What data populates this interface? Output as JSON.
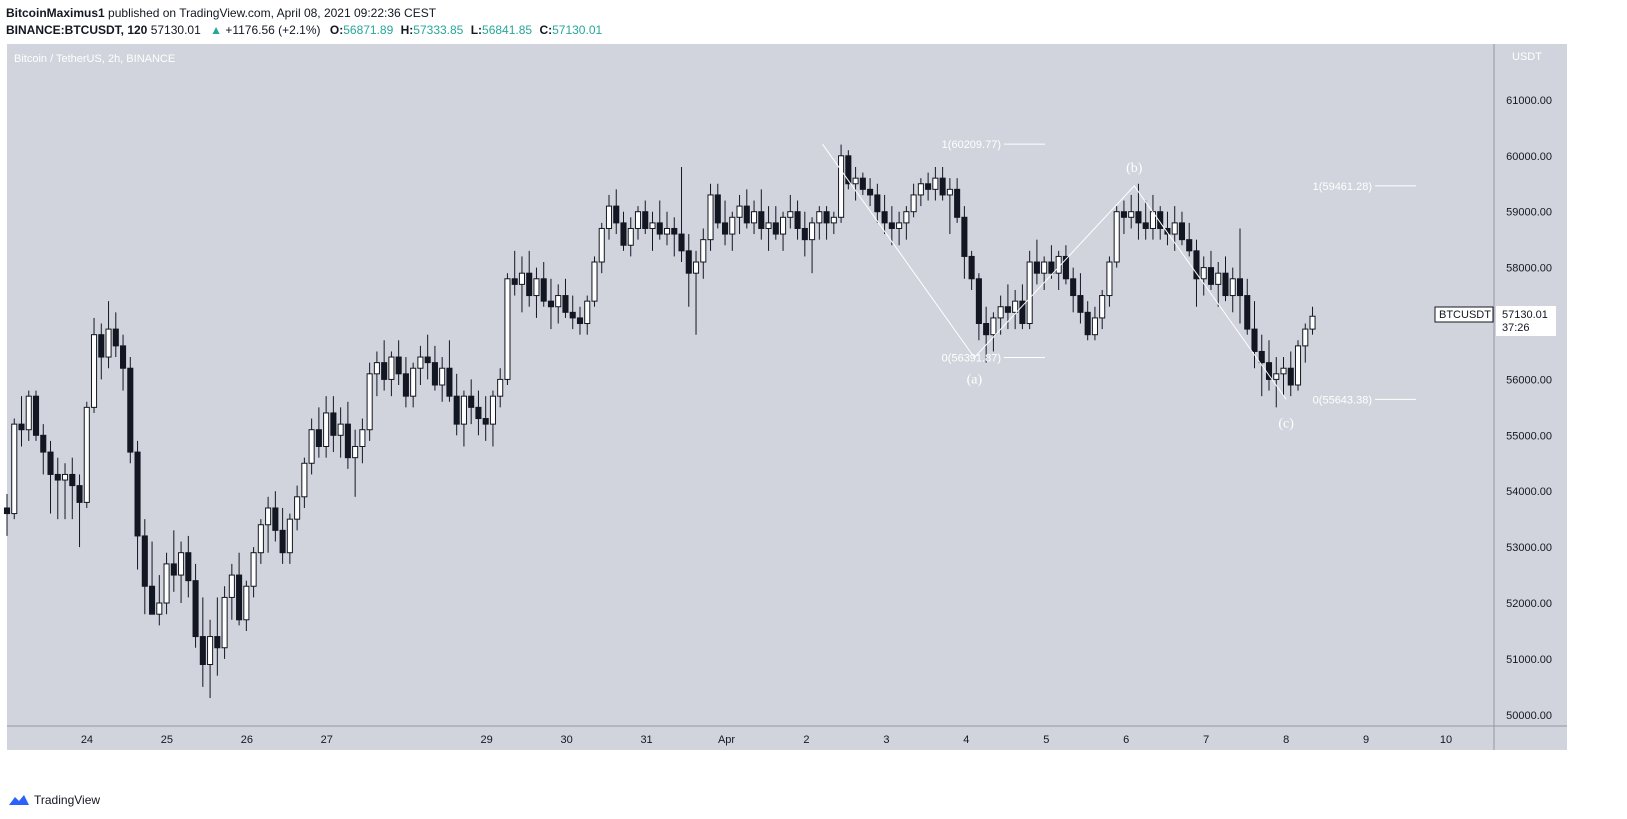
{
  "header": {
    "author": "BitcoinMaximus1",
    "published_text": "published on TradingView.com, April 08, 2021 09:22:36 CEST",
    "symbol": "BINANCE:BTCUSDT, 120",
    "price": "57130.01",
    "change_arrow": "▲",
    "change": "+1176.56 (+2.1%)",
    "open_label": "O:",
    "open": "56871.89",
    "high_label": "H:",
    "high": "57333.85",
    "low_label": "L:",
    "low": "56841.85",
    "close_label": "C:",
    "close": "57130.01"
  },
  "footer": {
    "brand": "TradingView"
  },
  "colors": {
    "plot_bg": "#d1d4dc",
    "up_body": "#ffffff",
    "down_body": "#131722",
    "wick": "#131722",
    "annotation": "#ffffff",
    "accent_up": "#26a69a"
  },
  "chart_data": {
    "type": "candlestick",
    "title": "Bitcoin / TetherUS, 2h, BINANCE",
    "unit": "USDT",
    "ylim": [
      49800,
      62000
    ],
    "y_ticks": [
      50000,
      51000,
      52000,
      53000,
      54000,
      55000,
      56000,
      57000,
      58000,
      59000,
      60000,
      61000
    ],
    "y_tick_labels": [
      "50000.00",
      "51000.00",
      "52000.00",
      "53000.00",
      "54000.00",
      "55000.00",
      "56000.00",
      "57000.00",
      "58000.00",
      "59000.00",
      "60000.00",
      "61000.00"
    ],
    "x_day_range": [
      23.0,
      33.6
    ],
    "x_ticks": [
      {
        "day": 24,
        "label": "24"
      },
      {
        "day": 25,
        "label": "25"
      },
      {
        "day": 26,
        "label": "26"
      },
      {
        "day": 27,
        "label": "27"
      },
      {
        "day": 29,
        "label": "29"
      },
      {
        "day": 30,
        "label": "30"
      },
      {
        "day": 31,
        "label": "31"
      },
      {
        "day": 32,
        "label": "Apr"
      },
      {
        "day": 33,
        "label": "2"
      },
      {
        "day": 34,
        "label": "3"
      },
      {
        "day": 35,
        "label": "4"
      },
      {
        "day": 36,
        "label": "5"
      },
      {
        "day": 37,
        "label": "6"
      },
      {
        "day": 38,
        "label": "7"
      },
      {
        "day": 39,
        "label": "8"
      },
      {
        "day": 40,
        "label": "9"
      },
      {
        "day": 41,
        "label": "10"
      }
    ],
    "last_price": {
      "symbol": "BTCUSDT",
      "price": "57130.01",
      "countdown": "37:26",
      "value": 57130.01
    },
    "candles": [
      [
        53700,
        53950,
        53200,
        53600
      ],
      [
        53600,
        55300,
        53500,
        55200
      ],
      [
        55200,
        55700,
        54800,
        55100
      ],
      [
        55100,
        55800,
        54900,
        55700
      ],
      [
        55700,
        55800,
        54900,
        55000
      ],
      [
        55000,
        55200,
        54300,
        54700
      ],
      [
        54700,
        54900,
        53600,
        54300
      ],
      [
        54300,
        54600,
        53500,
        54200
      ],
      [
        54200,
        54500,
        53500,
        54300
      ],
      [
        54300,
        54600,
        53500,
        54100
      ],
      [
        54100,
        54300,
        53000,
        53800
      ],
      [
        53800,
        55600,
        53700,
        55500
      ],
      [
        55500,
        57100,
        55400,
        56800
      ],
      [
        56800,
        57000,
        56000,
        56400
      ],
      [
        56400,
        57400,
        56200,
        56900
      ],
      [
        56900,
        57200,
        56400,
        56600
      ],
      [
        56600,
        56800,
        55800,
        56200
      ],
      [
        56200,
        56400,
        54500,
        54700
      ],
      [
        54700,
        54900,
        52600,
        53200
      ],
      [
        53200,
        53500,
        51800,
        52300
      ],
      [
        52300,
        53100,
        51900,
        51800
      ],
      [
        51800,
        52500,
        51600,
        52000
      ],
      [
        52000,
        52900,
        51800,
        52700
      ],
      [
        52700,
        53300,
        52200,
        52500
      ],
      [
        52500,
        53100,
        52000,
        52900
      ],
      [
        52900,
        53200,
        52100,
        52400
      ],
      [
        52400,
        52700,
        51200,
        51400
      ],
      [
        51400,
        52100,
        50500,
        50900
      ],
      [
        50900,
        51700,
        50300,
        51400
      ],
      [
        51400,
        52100,
        50700,
        51200
      ],
      [
        51200,
        52300,
        51000,
        52100
      ],
      [
        52100,
        52700,
        51700,
        52500
      ],
      [
        52500,
        52900,
        51600,
        51700
      ],
      [
        51700,
        52400,
        51500,
        52300
      ],
      [
        52300,
        53000,
        52100,
        52900
      ],
      [
        52900,
        53500,
        52700,
        53400
      ],
      [
        53400,
        53900,
        52900,
        53700
      ],
      [
        53700,
        54000,
        53100,
        53300
      ],
      [
        53300,
        53700,
        52700,
        52900
      ],
      [
        52900,
        53600,
        52700,
        53500
      ],
      [
        53500,
        54100,
        53300,
        53900
      ],
      [
        53900,
        54600,
        53700,
        54500
      ],
      [
        54500,
        55300,
        54300,
        55100
      ],
      [
        55100,
        55500,
        54600,
        54800
      ],
      [
        54800,
        55700,
        54600,
        55400
      ],
      [
        55400,
        55700,
        54700,
        55000
      ],
      [
        55000,
        55500,
        54600,
        55200
      ],
      [
        55200,
        55600,
        54400,
        54600
      ],
      [
        54600,
        55100,
        53900,
        54800
      ],
      [
        54800,
        55300,
        54500,
        55100
      ],
      [
        55100,
        56300,
        54900,
        56100
      ],
      [
        56100,
        56500,
        55700,
        56300
      ],
      [
        56300,
        56700,
        55800,
        56000
      ],
      [
        56000,
        56500,
        55700,
        56400
      ],
      [
        56400,
        56700,
        55900,
        56100
      ],
      [
        56100,
        56400,
        55500,
        55700
      ],
      [
        55700,
        56300,
        55500,
        56200
      ],
      [
        56200,
        56600,
        55900,
        56400
      ],
      [
        56400,
        56800,
        56000,
        56300
      ],
      [
        56300,
        56600,
        55800,
        55900
      ],
      [
        55900,
        56400,
        55600,
        56200
      ],
      [
        56200,
        56700,
        55600,
        55700
      ],
      [
        55700,
        56100,
        55000,
        55200
      ],
      [
        55200,
        55800,
        54800,
        55700
      ],
      [
        55700,
        56000,
        55200,
        55500
      ],
      [
        55500,
        55800,
        55000,
        55300
      ],
      [
        55300,
        55700,
        54900,
        55200
      ],
      [
        55200,
        55800,
        54800,
        55700
      ],
      [
        55700,
        56200,
        55500,
        56000
      ],
      [
        56000,
        57900,
        55900,
        57800
      ],
      [
        57800,
        58300,
        57500,
        57700
      ],
      [
        57700,
        58200,
        57200,
        57900
      ],
      [
        57900,
        58300,
        57300,
        57500
      ],
      [
        57500,
        58000,
        57100,
        57800
      ],
      [
        57800,
        58100,
        57300,
        57400
      ],
      [
        57400,
        57800,
        56900,
        57300
      ],
      [
        57300,
        57700,
        57000,
        57500
      ],
      [
        57500,
        57800,
        57100,
        57200
      ],
      [
        57200,
        57500,
        56900,
        57100
      ],
      [
        57100,
        57300,
        56800,
        57000
      ],
      [
        57000,
        57500,
        56800,
        57400
      ],
      [
        57400,
        58200,
        57300,
        58100
      ],
      [
        58100,
        58800,
        57900,
        58700
      ],
      [
        58700,
        59300,
        58500,
        59100
      ],
      [
        59100,
        59400,
        58600,
        58800
      ],
      [
        58800,
        59000,
        58300,
        58400
      ],
      [
        58400,
        58900,
        58200,
        58700
      ],
      [
        58700,
        59100,
        58500,
        59000
      ],
      [
        59000,
        59200,
        58600,
        58700
      ],
      [
        58700,
        59000,
        58300,
        58800
      ],
      [
        58800,
        59200,
        58500,
        58600
      ],
      [
        58600,
        59000,
        58400,
        58700
      ],
      [
        58700,
        58900,
        58200,
        58600
      ],
      [
        58600,
        59800,
        58100,
        58300
      ],
      [
        58300,
        58600,
        57300,
        57900
      ],
      [
        57900,
        58300,
        56800,
        58100
      ],
      [
        58100,
        58700,
        57800,
        58500
      ],
      [
        58500,
        59500,
        58300,
        59300
      ],
      [
        59300,
        59500,
        58700,
        58800
      ],
      [
        58800,
        59200,
        58400,
        58600
      ],
      [
        58600,
        59000,
        58300,
        58900
      ],
      [
        58900,
        59300,
        58600,
        59100
      ],
      [
        59100,
        59400,
        58700,
        58800
      ],
      [
        58800,
        59200,
        58600,
        59000
      ],
      [
        59000,
        59400,
        58500,
        58700
      ],
      [
        58700,
        59100,
        58300,
        58800
      ],
      [
        58800,
        59100,
        58500,
        58600
      ],
      [
        58600,
        59000,
        58300,
        58900
      ],
      [
        58900,
        59300,
        58700,
        59000
      ],
      [
        59000,
        59200,
        58500,
        58700
      ],
      [
        58700,
        59000,
        58200,
        58500
      ],
      [
        58500,
        58900,
        57900,
        58800
      ],
      [
        58800,
        59100,
        58500,
        59000
      ],
      [
        59000,
        59100,
        58500,
        58800
      ],
      [
        58800,
        59000,
        58600,
        58900
      ],
      [
        58900,
        60200,
        58800,
        60000
      ],
      [
        60000,
        60100,
        59400,
        59500
      ],
      [
        59500,
        59800,
        59200,
        59600
      ],
      [
        59600,
        59700,
        59300,
        59400
      ],
      [
        59400,
        59600,
        59100,
        59300
      ],
      [
        59300,
        59500,
        58800,
        59000
      ],
      [
        59000,
        59300,
        58600,
        58800
      ],
      [
        58800,
        59100,
        58400,
        58700
      ],
      [
        58700,
        59000,
        58400,
        58800
      ],
      [
        58800,
        59100,
        58500,
        59000
      ],
      [
        59000,
        59500,
        58900,
        59300
      ],
      [
        59300,
        59600,
        59100,
        59500
      ],
      [
        59500,
        59700,
        59200,
        59400
      ],
      [
        59400,
        59800,
        59200,
        59600
      ],
      [
        59600,
        59800,
        59200,
        59300
      ],
      [
        59300,
        59600,
        58600,
        59400
      ],
      [
        59400,
        59600,
        58800,
        58900
      ],
      [
        58900,
        59100,
        57800,
        58200
      ],
      [
        58200,
        58300,
        57600,
        57800
      ],
      [
        57800,
        57900,
        56700,
        57000
      ],
      [
        57000,
        57300,
        56300,
        56800
      ],
      [
        56800,
        57200,
        56500,
        57100
      ],
      [
        57100,
        57500,
        56800,
        57300
      ],
      [
        57300,
        57700,
        56900,
        57200
      ],
      [
        57200,
        57600,
        56900,
        57400
      ],
      [
        57400,
        57700,
        56900,
        57000
      ],
      [
        57000,
        58300,
        56900,
        58100
      ],
      [
        58100,
        58500,
        57700,
        57900
      ],
      [
        57900,
        58200,
        57600,
        58100
      ],
      [
        58100,
        58400,
        57800,
        57900
      ],
      [
        57900,
        58300,
        57600,
        58200
      ],
      [
        58200,
        58400,
        57700,
        57800
      ],
      [
        57800,
        58000,
        57200,
        57500
      ],
      [
        57500,
        57900,
        57000,
        57200
      ],
      [
        57200,
        57400,
        56700,
        56800
      ],
      [
        56800,
        57300,
        56700,
        57100
      ],
      [
        57100,
        57600,
        56900,
        57500
      ],
      [
        57500,
        58200,
        57300,
        58100
      ],
      [
        58100,
        59100,
        58000,
        59000
      ],
      [
        59000,
        59200,
        58600,
        58900
      ],
      [
        58900,
        59300,
        58700,
        59000
      ],
      [
        59000,
        59500,
        58500,
        58800
      ],
      [
        58800,
        59200,
        58500,
        58700
      ],
      [
        58700,
        59300,
        58500,
        59000
      ],
      [
        59000,
        59100,
        58500,
        58700
      ],
      [
        58700,
        59000,
        58400,
        58600
      ],
      [
        58600,
        59100,
        58300,
        58800
      ],
      [
        58800,
        59000,
        58400,
        58500
      ],
      [
        58500,
        58800,
        58200,
        58300
      ],
      [
        58300,
        58500,
        57300,
        57800
      ],
      [
        57800,
        58200,
        57500,
        58000
      ],
      [
        58000,
        58300,
        57600,
        57700
      ],
      [
        57700,
        58100,
        57300,
        57900
      ],
      [
        57900,
        58200,
        57400,
        57500
      ],
      [
        57500,
        58000,
        57200,
        57800
      ],
      [
        57800,
        58700,
        57000,
        57500
      ],
      [
        57500,
        57800,
        56800,
        56900
      ],
      [
        56900,
        57400,
        56200,
        56500
      ],
      [
        56500,
        56800,
        55700,
        56300
      ],
      [
        56300,
        56700,
        55800,
        56000
      ],
      [
        56000,
        56400,
        55500,
        56100
      ],
      [
        56100,
        56400,
        55700,
        56200
      ],
      [
        56200,
        56500,
        55700,
        55900
      ],
      [
        55900,
        56700,
        55800,
        56600
      ],
      [
        56600,
        57000,
        56300,
        56900
      ],
      [
        56900,
        57300,
        56800,
        57130
      ]
    ]
  },
  "annotations": {
    "fib_upper": {
      "label_hi": "1(59461.28)",
      "val_hi": 59461.28,
      "label_lo": "0(55643.38)",
      "val_lo": 55643.38
    },
    "fib_lower": {
      "label_hi": "1(60209.77)",
      "val_hi": 60209.77,
      "label_lo": "0(56391.87)",
      "val_lo": 56391.87
    },
    "waves": [
      {
        "label": "(a)",
        "value": 56391.87
      },
      {
        "label": "(b)",
        "value": 59461.28
      },
      {
        "label": "(c)",
        "value": 55643.38
      }
    ]
  }
}
